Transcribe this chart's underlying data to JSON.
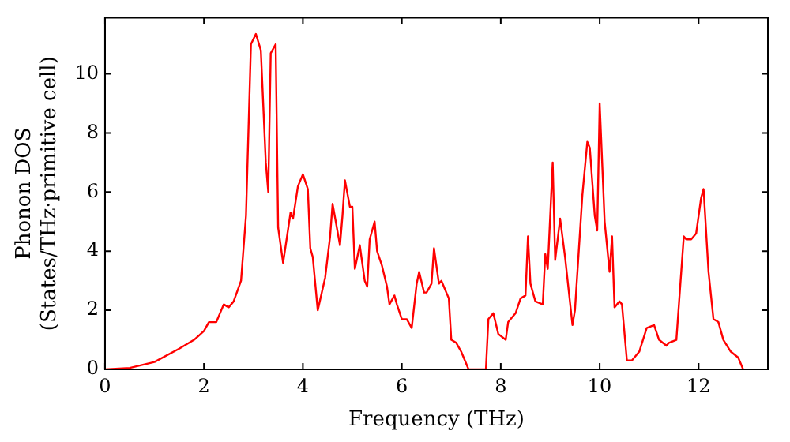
{
  "chart_data": {
    "type": "line",
    "xlabel": "Frequency (THz)",
    "ylabel": "Phonon DOS\n(States/THz·primitive cell)",
    "xlim": [
      0,
      13.4
    ],
    "ylim": [
      0,
      11.9
    ],
    "xticks": [
      0,
      2,
      4,
      6,
      8,
      10,
      12
    ],
    "yticks": [
      0,
      2,
      4,
      6,
      8,
      10
    ],
    "grid": false,
    "legend": false,
    "marker": "none",
    "line_style": "solid",
    "series": [
      {
        "color": "#ff0000",
        "x": [
          0,
          0.5,
          1,
          1.5,
          1.8,
          2,
          2.1,
          2.25,
          2.4,
          2.5,
          2.6,
          2.75,
          2.85,
          2.95,
          3.05,
          3.15,
          3.25,
          3.3,
          3.35,
          3.45,
          3.5,
          3.6,
          3.75,
          3.8,
          3.9,
          4.0,
          4.1,
          4.15,
          4.2,
          4.3,
          4.45,
          4.55,
          4.6,
          4.75,
          4.8,
          4.85,
          4.95,
          5.0,
          5.05,
          5.15,
          5.25,
          5.3,
          5.35,
          5.45,
          5.5,
          5.6,
          5.7,
          5.75,
          5.85,
          5.9,
          6.0,
          6.1,
          6.2,
          6.3,
          6.35,
          6.45,
          6.5,
          6.6,
          6.65,
          6.75,
          6.8,
          6.95,
          7.0,
          7.1,
          7.2,
          7.35,
          7.7,
          7.75,
          7.85,
          7.95,
          8.1,
          8.15,
          8.3,
          8.4,
          8.5,
          8.55,
          8.6,
          8.7,
          8.85,
          8.9,
          8.95,
          9.05,
          9.1,
          9.2,
          9.3,
          9.45,
          9.5,
          9.65,
          9.75,
          9.8,
          9.9,
          9.95,
          10.0,
          10.1,
          10.2,
          10.25,
          10.3,
          10.4,
          10.45,
          10.55,
          10.65,
          10.8,
          10.95,
          11.1,
          11.2,
          11.35,
          11.4,
          11.55,
          11.7,
          11.75,
          11.85,
          11.95,
          12.05,
          12.1,
          12.2,
          12.3,
          12.4,
          12.5,
          12.65,
          12.8,
          12.9
        ],
        "values": [
          0,
          0.05,
          0.25,
          0.7,
          1.0,
          1.3,
          1.6,
          1.6,
          2.2,
          2.1,
          2.3,
          3.0,
          5.2,
          11.0,
          11.35,
          10.8,
          7.0,
          6.0,
          10.7,
          11.0,
          4.8,
          3.6,
          5.3,
          5.1,
          6.2,
          6.6,
          6.1,
          4.1,
          3.8,
          2.0,
          3.1,
          4.5,
          5.6,
          4.2,
          5.2,
          6.4,
          5.5,
          5.5,
          3.4,
          4.2,
          3.0,
          2.8,
          4.4,
          5.0,
          4.0,
          3.5,
          2.8,
          2.2,
          2.5,
          2.2,
          1.7,
          1.7,
          1.4,
          2.9,
          3.3,
          2.6,
          2.6,
          2.9,
          4.1,
          2.9,
          3.0,
          2.4,
          1.0,
          0.9,
          0.6,
          0,
          0,
          1.7,
          1.9,
          1.2,
          1.0,
          1.6,
          1.9,
          2.4,
          2.5,
          4.5,
          2.9,
          2.3,
          2.2,
          3.9,
          3.4,
          7.0,
          3.7,
          5.1,
          3.8,
          1.5,
          2.0,
          5.9,
          7.7,
          7.5,
          5.2,
          4.7,
          9.0,
          5.0,
          3.3,
          4.5,
          2.1,
          2.3,
          2.2,
          0.3,
          0.3,
          0.6,
          1.4,
          1.5,
          1.0,
          0.8,
          0.9,
          1.0,
          4.5,
          4.4,
          4.4,
          4.6,
          5.8,
          6.1,
          3.3,
          1.7,
          1.6,
          1.0,
          0.6,
          0.4,
          0
        ]
      }
    ]
  }
}
